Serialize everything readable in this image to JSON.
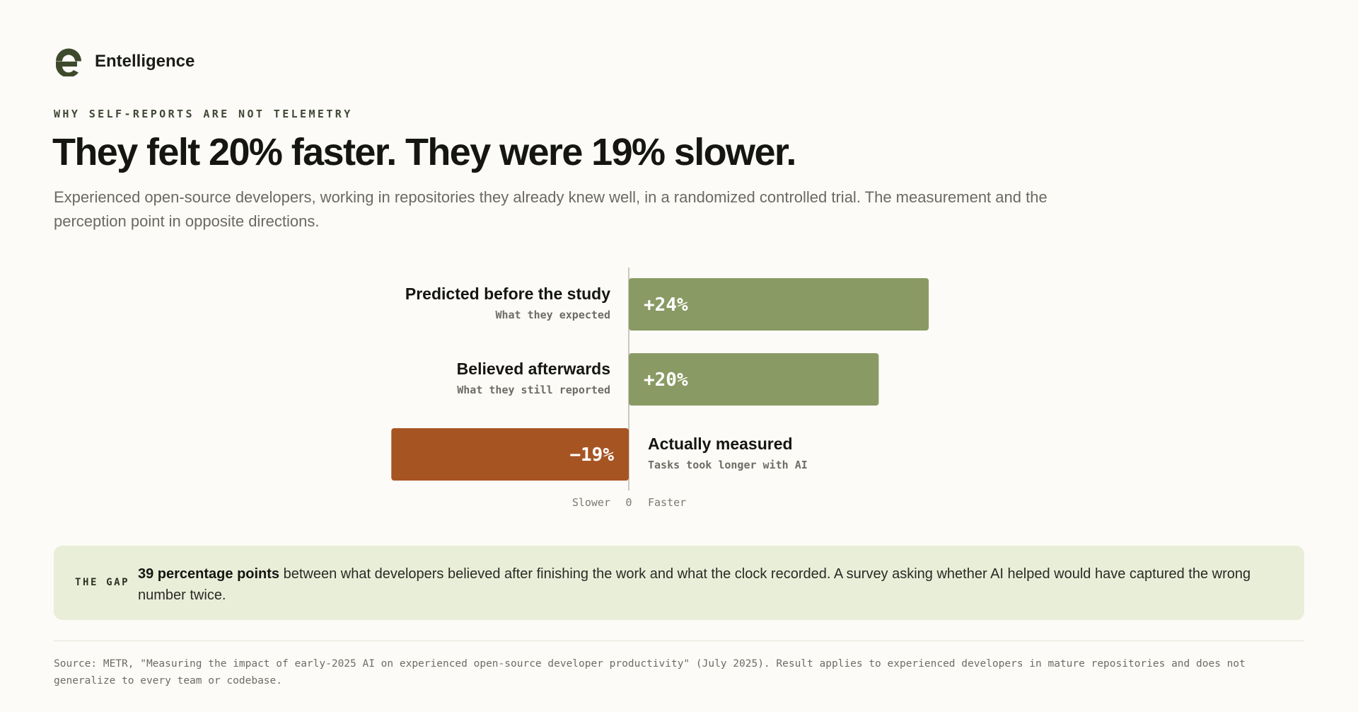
{
  "brand": {
    "name": "Entelligence",
    "logo_icon": "entelligence-e-logo-icon",
    "logo_color": "#3d4a2c"
  },
  "eyebrow": "WHY SELF-REPORTS ARE NOT TELEMETRY",
  "headline": "They felt 20% faster. They were 19% slower.",
  "subtitle": "Experienced open-source developers, working in repositories they already knew well, in a randomized controlled trial. The measurement and the perception point in opposite directions.",
  "chart_data": {
    "type": "bar",
    "orientation": "horizontal-diverging",
    "categories": [
      "Predicted before the study",
      "Believed afterwards",
      "Actually measured"
    ],
    "sublabels": [
      "What they expected",
      "What they still reported",
      "Tasks took longer with AI"
    ],
    "values": [
      24,
      20,
      -19
    ],
    "value_labels": [
      "+24%",
      "+20%",
      "−19%"
    ],
    "axis_labels": {
      "negative": "Slower",
      "zero": "0",
      "positive": "Faster"
    },
    "xlim": [
      -19,
      24
    ],
    "colors": {
      "positive": "#8a9a64",
      "negative": "#a75423"
    },
    "grid": false,
    "legend": "none"
  },
  "gap": {
    "label": "THE GAP",
    "highlight": "39 percentage points",
    "text": " between what developers believed after finishing the work and what the clock recorded. A survey asking whether AI helped would have captured the wrong number twice."
  },
  "source": "Source: METR, \"Measuring the impact of early-2025 AI on experienced open-source developer productivity\" (July 2025). Result applies to experienced developers in mature repositories and does not generalize to every team or codebase."
}
